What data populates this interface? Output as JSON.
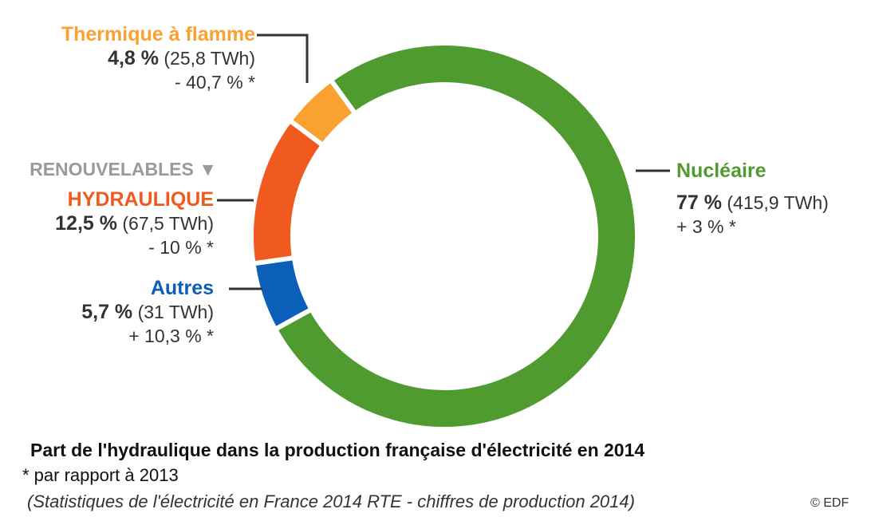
{
  "chart_data": {
    "type": "pie",
    "style": "donut",
    "title": "Part de l'hydraulique dans la production française d'électricité en 2014",
    "footnote": "* par rapport à 2013",
    "source": "(Statistiques de l'électricité en France 2014 RTE - chiffres de production 2014)",
    "copyright": "© EDF",
    "group_label": "RENOUVELABLES ▼",
    "slices": [
      {
        "name": "Nucléaire",
        "percent_label": "77 %",
        "twh_label": "(415,9 TWh)",
        "change_label": "+ 3 % *",
        "value": 415.9,
        "color": "#4f9b2f"
      },
      {
        "name": "Autres",
        "percent_label": "5,7 %",
        "twh_label": "(31 TWh)",
        "change_label": "+ 10,3 % *",
        "value": 31,
        "color": "#0b5fb8"
      },
      {
        "name": "HYDRAULIQUE",
        "percent_label": "12,5 %",
        "twh_label": "(67,5 TWh)",
        "change_label": "- 10 % *",
        "value": 67.5,
        "color": "#f15a1f"
      },
      {
        "name": "Thermique à flamme",
        "percent_label": "4,8 %",
        "twh_label": "(25,8 TWh)",
        "change_label": "- 40,7 % *",
        "value": 25.8,
        "color": "#f9a131"
      }
    ]
  }
}
